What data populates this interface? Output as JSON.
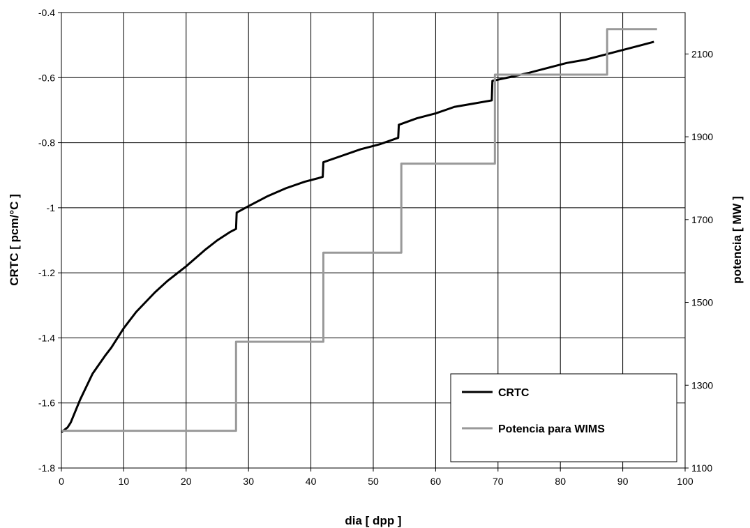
{
  "chart_data": {
    "type": "line",
    "title": "",
    "xlabel": "dia [ dpp ]",
    "ylabel": "CRTC [ pcm/°C ]",
    "y2label": "potencia [ MW ]",
    "xlim": [
      0,
      100
    ],
    "ylim": [
      -1.8,
      -0.4
    ],
    "y2lim": [
      1100,
      2200
    ],
    "x_ticks": [
      "0",
      "10",
      "20",
      "30",
      "40",
      "50",
      "60",
      "70",
      "80",
      "90",
      "100"
    ],
    "y_ticks": [
      "-1.8",
      "-1.6",
      "-1.4",
      "-1.2",
      "-1",
      "-0.8",
      "-0.6",
      "-0.4"
    ],
    "y2_ticks": [
      "1100",
      "1300",
      "1500",
      "1700",
      "1900",
      "2100"
    ],
    "grid": true,
    "legend_position": "bottom-right",
    "colors": {
      "crtc": "#000000",
      "potencia": "#999999",
      "grid": "#000000"
    },
    "series": [
      {
        "name": "CRTC",
        "axis": "left",
        "x": [
          0,
          1,
          1.5,
          3,
          5,
          7,
          8,
          10,
          12,
          15,
          17,
          20,
          23,
          25,
          27,
          28,
          28.1,
          30,
          33,
          36,
          39,
          41,
          41.9,
          42,
          45,
          48,
          51,
          54,
          54.1,
          57,
          60,
          63,
          66,
          69,
          69.1,
          72,
          75,
          78,
          81,
          84,
          87,
          90,
          93,
          95
        ],
        "y": [
          -1.69,
          -1.675,
          -1.66,
          -1.59,
          -1.51,
          -1.455,
          -1.43,
          -1.37,
          -1.32,
          -1.26,
          -1.225,
          -1.18,
          -1.13,
          -1.1,
          -1.075,
          -1.065,
          -1.015,
          -0.995,
          -0.965,
          -0.94,
          -0.92,
          -0.91,
          -0.905,
          -0.86,
          -0.84,
          -0.82,
          -0.805,
          -0.785,
          -0.745,
          -0.725,
          -0.71,
          -0.69,
          -0.68,
          -0.67,
          -0.61,
          -0.598,
          -0.585,
          -0.57,
          -0.555,
          -0.545,
          -0.53,
          -0.515,
          -0.5,
          -0.49
        ]
      },
      {
        "name": "Potencia para WIMS",
        "axis": "right",
        "x": [
          0,
          28,
          28,
          42,
          42,
          54.5,
          54.5,
          69.5,
          69.5,
          87.5,
          87.5,
          95.5
        ],
        "y": [
          1190,
          1190,
          1405,
          1405,
          1620,
          1620,
          1835,
          1835,
          2050,
          2050,
          2160,
          2160
        ]
      }
    ]
  }
}
